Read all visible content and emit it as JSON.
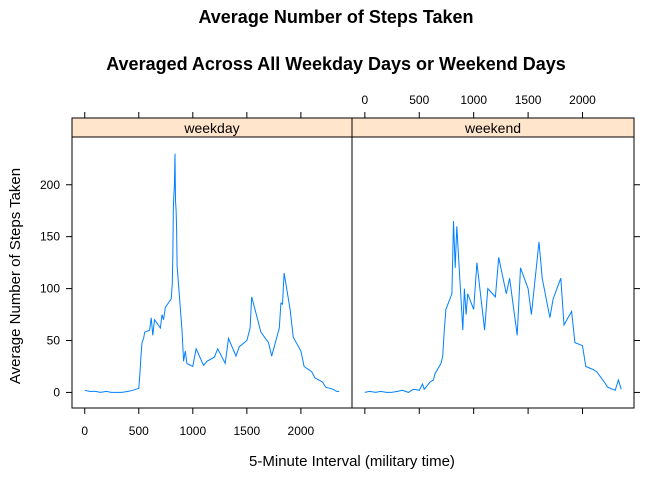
{
  "chart_data": {
    "type": "line",
    "title_line1": "Average Number of Steps Taken",
    "title_line2": "Averaged Across All Weekday Days or Weekend Days",
    "xlabel": "5-Minute Interval (military time)",
    "ylabel": "Average Number of Steps Taken",
    "xlim": [
      -118,
      2473
    ],
    "ylim": [
      -15,
      246
    ],
    "x_ticks": [
      0,
      500,
      1000,
      1500,
      2000
    ],
    "y_ticks": [
      0,
      50,
      100,
      150,
      200
    ],
    "x_tick_labels": [
      "0",
      "500",
      "1000",
      "1500",
      "2000"
    ],
    "y_tick_labels": [
      "0",
      "50",
      "100",
      "150",
      "200"
    ],
    "line_color": "#0080ff",
    "strip_color": "#ffe5cc",
    "panels": [
      {
        "name": "weekday",
        "x": [
          0,
          45,
          100,
          145,
          200,
          245,
          300,
          345,
          400,
          445,
          500,
          510,
          520,
          530,
          545,
          555,
          600,
          615,
          630,
          645,
          700,
          715,
          730,
          745,
          800,
          810,
          815,
          820,
          830,
          835,
          840,
          845,
          850,
          855,
          900,
          915,
          930,
          945,
          1000,
          1030,
          1100,
          1130,
          1200,
          1230,
          1300,
          1330,
          1400,
          1430,
          1500,
          1530,
          1545,
          1600,
          1630,
          1700,
          1730,
          1800,
          1815,
          1830,
          1845,
          1900,
          1930,
          2000,
          2030,
          2100,
          2130,
          2200,
          2230,
          2300,
          2330,
          2355
        ],
        "y": [
          2,
          1,
          1,
          0,
          1,
          0,
          0,
          0,
          1,
          2,
          4,
          18,
          34,
          48,
          52,
          58,
          60,
          72,
          55,
          70,
          62,
          75,
          70,
          82,
          90,
          105,
          130,
          180,
          200,
          230,
          185,
          175,
          158,
          122,
          60,
          30,
          40,
          28,
          25,
          42,
          26,
          30,
          34,
          42,
          28,
          52,
          35,
          44,
          50,
          62,
          92,
          70,
          58,
          48,
          35,
          62,
          86,
          85,
          115,
          80,
          53,
          40,
          25,
          20,
          14,
          10,
          5,
          3,
          1,
          1
        ]
      },
      {
        "name": "weekend",
        "x": [
          0,
          45,
          100,
          145,
          200,
          245,
          300,
          345,
          400,
          445,
          500,
          530,
          545,
          600,
          630,
          645,
          700,
          715,
          730,
          745,
          800,
          815,
          830,
          845,
          900,
          915,
          930,
          945,
          1000,
          1030,
          1100,
          1130,
          1200,
          1230,
          1300,
          1330,
          1400,
          1430,
          1500,
          1530,
          1600,
          1630,
          1700,
          1730,
          1800,
          1830,
          1900,
          1930,
          2000,
          2030,
          2100,
          2130,
          2200,
          2230,
          2300,
          2330,
          2355
        ],
        "y": [
          0,
          1,
          0,
          1,
          0,
          0,
          1,
          2,
          0,
          3,
          2,
          8,
          3,
          10,
          12,
          18,
          28,
          35,
          60,
          80,
          95,
          165,
          120,
          160,
          60,
          100,
          75,
          95,
          80,
          125,
          60,
          100,
          92,
          130,
          95,
          110,
          55,
          120,
          100,
          75,
          145,
          110,
          72,
          90,
          110,
          65,
          78,
          48,
          45,
          25,
          22,
          20,
          10,
          5,
          2,
          12,
          3
        ]
      }
    ]
  }
}
